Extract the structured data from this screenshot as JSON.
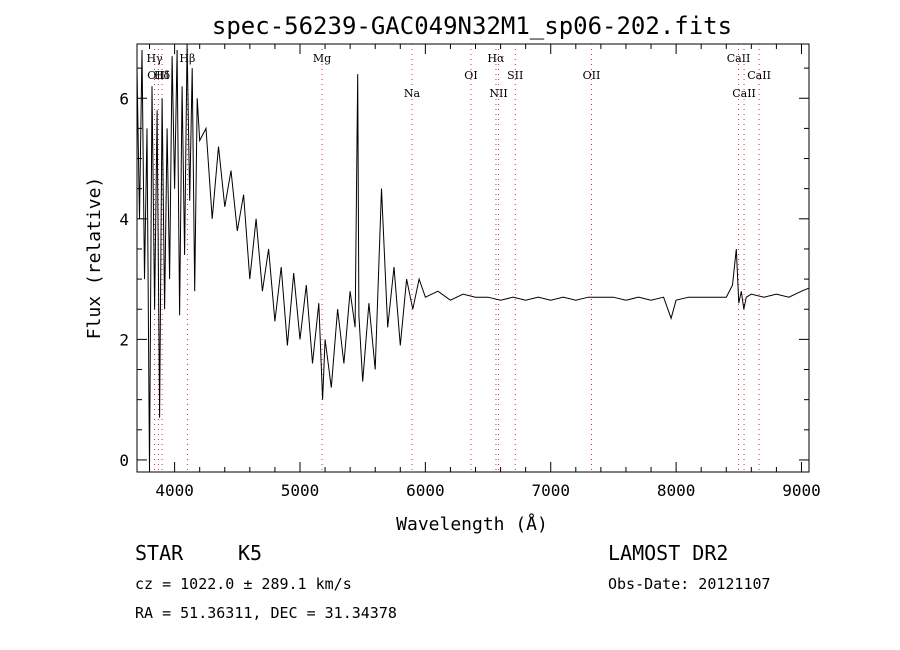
{
  "chart_data": {
    "type": "line",
    "title": "spec-56239-GAC049N32M1_sp06-202.fits",
    "xlabel": "Wavelength (Å)",
    "ylabel": "Flux (relative)",
    "xlim": [
      3700,
      9060
    ],
    "ylim": [
      -0.2,
      6.9
    ],
    "xticks": [
      4000,
      5000,
      6000,
      7000,
      8000,
      9000
    ],
    "yticks": [
      0,
      2,
      4,
      6
    ],
    "grid": false,
    "series": [
      {
        "x": [
          3700,
          3720,
          3740,
          3760,
          3780,
          3800,
          3820,
          3840,
          3860,
          3880,
          3900,
          3920,
          3940,
          3960,
          3980,
          4000,
          4020,
          4040,
          4060,
          4080,
          4100,
          4120,
          4140,
          4160,
          4180,
          4200,
          4250,
          4300,
          4350,
          4400,
          4450,
          4500,
          4550,
          4600,
          4650,
          4700,
          4750,
          4800,
          4850,
          4900,
          4950,
          5000,
          5050,
          5100,
          5150,
          5180,
          5200,
          5250,
          5300,
          5350,
          5400,
          5440,
          5460,
          5470,
          5500,
          5550,
          5600,
          5650,
          5700,
          5750,
          5800,
          5850,
          5900,
          5950,
          6000,
          6100,
          6200,
          6300,
          6400,
          6500,
          6600,
          6700,
          6800,
          6900,
          7000,
          7100,
          7200,
          7300,
          7400,
          7500,
          7600,
          7700,
          7800,
          7900,
          7960,
          8000,
          8100,
          8200,
          8300,
          8400,
          8450,
          8480,
          8500,
          8520,
          8540,
          8560,
          8600,
          8700,
          8800,
          8900,
          9000,
          9060
        ],
        "y": [
          6.5,
          4.0,
          6.8,
          3.0,
          5.5,
          -0.3,
          6.2,
          2.5,
          5.8,
          0.7,
          6.0,
          2.5,
          5.5,
          3.0,
          6.7,
          4.5,
          6.8,
          2.4,
          6.2,
          3.4,
          6.9,
          4.3,
          6.5,
          2.8,
          6.0,
          5.3,
          5.5,
          4.0,
          5.2,
          4.2,
          4.8,
          3.8,
          4.4,
          3.0,
          4.0,
          2.8,
          3.5,
          2.3,
          3.2,
          1.9,
          3.1,
          2.0,
          2.9,
          1.6,
          2.6,
          1.0,
          2.0,
          1.2,
          2.5,
          1.6,
          2.8,
          2.2,
          6.4,
          2.4,
          1.3,
          2.6,
          1.5,
          4.5,
          2.2,
          3.2,
          1.9,
          3.0,
          2.5,
          3.0,
          2.7,
          2.8,
          2.65,
          2.75,
          2.7,
          2.7,
          2.65,
          2.7,
          2.65,
          2.7,
          2.65,
          2.7,
          2.65,
          2.7,
          2.7,
          2.7,
          2.65,
          2.7,
          2.65,
          2.7,
          2.35,
          2.65,
          2.7,
          2.7,
          2.7,
          2.7,
          2.9,
          3.5,
          2.6,
          2.8,
          2.5,
          2.7,
          2.75,
          2.7,
          2.75,
          2.7,
          2.8,
          2.85
        ]
      }
    ],
    "lines": [
      {
        "label": "Hγ",
        "x": 3840,
        "row": 0
      },
      {
        "label": "OIII",
        "x": 3870,
        "row": 1
      },
      {
        "label": "Hδ",
        "x": 3900,
        "row": 1
      },
      {
        "label": "Hβ",
        "x": 4102,
        "row": 0
      },
      {
        "label": "Mg",
        "x": 5176,
        "row": 0
      },
      {
        "label": "Na",
        "x": 5893,
        "row": 2
      },
      {
        "label": "OI",
        "x": 6364,
        "row": 1
      },
      {
        "label": "Hα",
        "x": 6563,
        "row": 0
      },
      {
        "label": "NII",
        "x": 6584,
        "row": 2
      },
      {
        "label": "SII",
        "x": 6717,
        "row": 1
      },
      {
        "label": "OII",
        "x": 7325,
        "row": 1
      },
      {
        "label": "CaII",
        "x": 8498,
        "row": 0
      },
      {
        "label": "CaII",
        "x": 8542,
        "row": 2
      },
      {
        "label": "CaII",
        "x": 8662,
        "row": 1
      }
    ]
  },
  "info": {
    "type_label": "STAR",
    "subclass": "K5",
    "survey": "LAMOST DR2",
    "cz": "cz = 1022.0 ± 289.1 km/s",
    "obs_date": "Obs-Date: 20121107",
    "coords": "RA =  51.36311, DEC =  31.34378"
  }
}
